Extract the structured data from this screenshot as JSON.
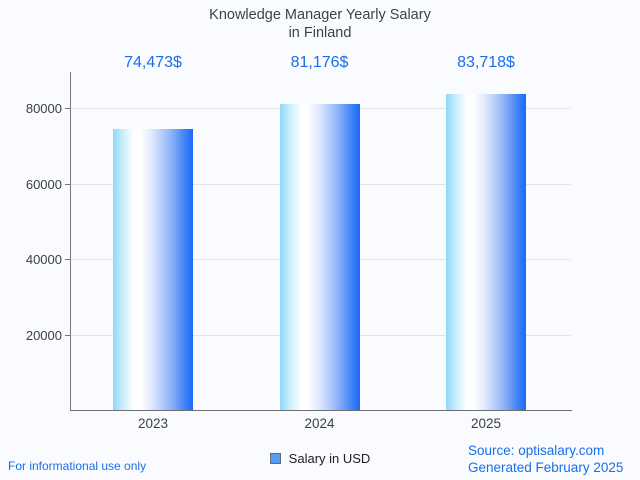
{
  "title": {
    "line1": "Knowledge Manager Yearly Salary",
    "line2": "in Finland"
  },
  "chart_data": {
    "type": "bar",
    "title": "Knowledge Manager Yearly Salary in Finland",
    "categories": [
      "2023",
      "2024",
      "2025"
    ],
    "values": [
      74473,
      81176,
      83718
    ],
    "value_labels": [
      "74,473$",
      "81,176$",
      "83,718$"
    ],
    "series": [
      {
        "name": "Salary in USD",
        "values": [
          74473,
          81176,
          83718
        ]
      }
    ],
    "xlabel": "",
    "ylabel": "",
    "yticks": [
      20000,
      40000,
      60000,
      80000
    ],
    "ytick_labels": [
      "20000",
      "40000",
      "60000",
      "80000"
    ],
    "ylim": [
      0,
      89500
    ],
    "grid": true,
    "legend_position": "bottom"
  },
  "legend": {
    "label": "Salary in USD"
  },
  "footer": {
    "left": "For informational use only",
    "source": "Source: optisalary.com",
    "generated": "Generated February 2025"
  },
  "colors": {
    "background": "#fafbfe",
    "accent_blue_text": "#1a6fe8",
    "bar_gradient_left": "#8fd7f9",
    "bar_gradient_middle": "#ffffff",
    "bar_gradient_right": "#196bfa",
    "axis_line": "#77787a",
    "gridline": "#e4e4e6",
    "axis_text": "#3d4043",
    "legend_swatch_fill": "#569df2",
    "legend_swatch_border": "#646b73",
    "legend_text": "#202124"
  }
}
